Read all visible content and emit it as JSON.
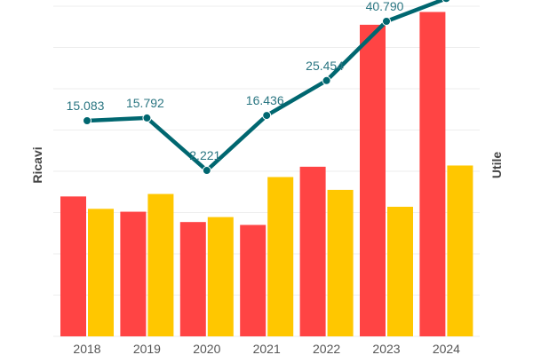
{
  "chart_data": {
    "type": "bar",
    "categories": [
      "2018",
      "2019",
      "2020",
      "2021",
      "2022",
      "2023",
      "2024"
    ],
    "ylabel": "Ricavi",
    "y2label": "Utile",
    "ylim": [
      0,
      8.15
    ],
    "y2lim": [
      -40.7,
      46.3
    ],
    "grid": true,
    "series": [
      {
        "kind": "bar",
        "axis": "left",
        "color": "#ff4444",
        "values": [
          3.39,
          3.02,
          2.77,
          2.7,
          4.11,
          7.55,
          7.86
        ]
      },
      {
        "kind": "bar",
        "axis": "left",
        "color": "#ffc700",
        "values": [
          3.09,
          3.45,
          2.89,
          3.86,
          3.55,
          3.14,
          4.14
        ]
      },
      {
        "kind": "line",
        "axis": "right",
        "color": "#006770",
        "values": [
          15.083,
          15.792,
          2.221,
          16.436,
          25.454,
          40.79,
          46.7
        ],
        "labels": [
          "15.083",
          "15.792",
          "2.221",
          "16.436",
          "25.454",
          "40.790",
          ""
        ]
      }
    ]
  }
}
